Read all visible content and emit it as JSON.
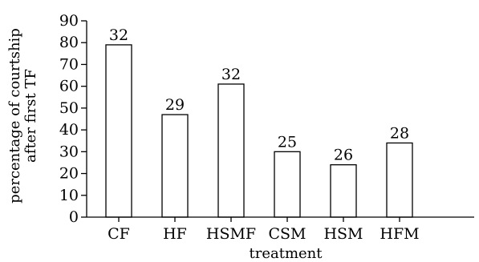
{
  "chart_data": {
    "type": "bar",
    "categories": [
      "CF",
      "HF",
      "HSMF",
      "CSM",
      "HSM",
      "HFM"
    ],
    "values": [
      79,
      47,
      61,
      30,
      24,
      34
    ],
    "data_labels": [
      "32",
      "29",
      "32",
      "25",
      "26",
      "28"
    ],
    "xlabel": "treatment",
    "ylabel_lines": [
      "percentage of courtship",
      "after first TF"
    ],
    "yticks": [
      0,
      10,
      20,
      30,
      40,
      50,
      60,
      70,
      80,
      90
    ],
    "ylim": [
      0,
      90
    ],
    "grid": false,
    "legend": "none",
    "colors": {
      "bar_fill": "#ffffff",
      "bar_stroke": "#000000",
      "axis": "#000000"
    }
  }
}
